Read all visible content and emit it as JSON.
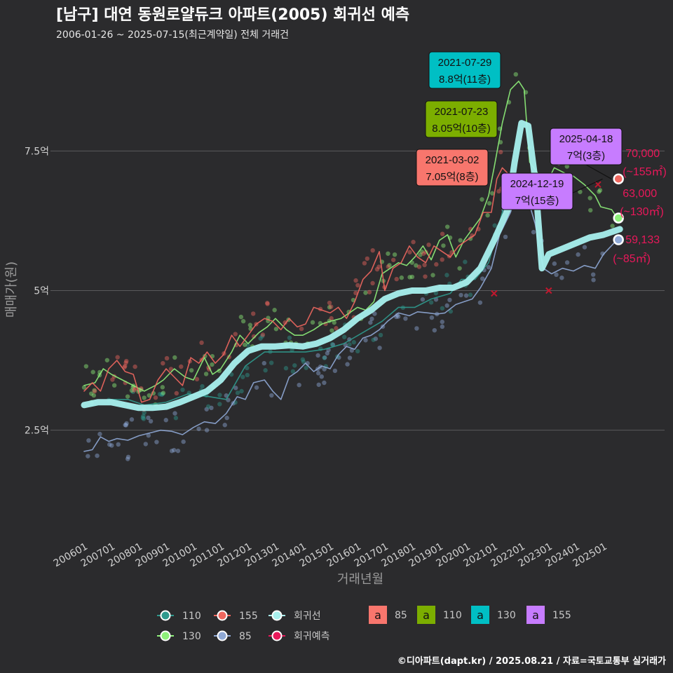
{
  "header": {
    "title": "[남구] 대연 동원로얄듀크 아파트(2005) 회귀선 예측",
    "subtitle": "2006-01-26 ~ 2025-07-15(최근계약일) 전체 거래건"
  },
  "footer": {
    "credit": "©디아파트(dapt.kr) / 2025.08.21 / 자료=국토교통부 실거래가"
  },
  "colors": {
    "background": "#2b2b2d",
    "grid": "#5a5a5c",
    "s85": "#8fa9d6",
    "s110": "#2f9a8e",
    "s130": "#8ef07a",
    "s155": "#f0675f",
    "regression": "#a8f0ee",
    "forecast": "#e8185a",
    "box85": "#f8766d",
    "box110": "#7cae00",
    "box130": "#00bfc4",
    "box155": "#c77cff"
  },
  "chart_data": {
    "type": "line",
    "title": "[남구] 대연 동원로얄듀크 아파트(2005) 회귀선 예측",
    "xlabel": "거래년월",
    "ylabel": "매매가(원)",
    "ylim": [
      0.6,
      9.3
    ],
    "y_unit": "억",
    "y_ticks": [
      {
        "value": 2.5,
        "label": "2.5억"
      },
      {
        "value": 5,
        "label": "5억"
      },
      {
        "value": 7.5,
        "label": "7.5억"
      }
    ],
    "x_ticks": [
      "200601",
      "200701",
      "200801",
      "200901",
      "201001",
      "201101",
      "201201",
      "201301",
      "201401",
      "201501",
      "201601",
      "201701",
      "201801",
      "201901",
      "202001",
      "202101",
      "202201",
      "202301",
      "202401",
      "202501"
    ],
    "xlim": [
      2006.0,
      2025.75
    ],
    "series": [
      {
        "name": "85",
        "color": "#8fa9d6",
        "points": [
          [
            2006.0,
            2.12
          ],
          [
            2006.3,
            2.15
          ],
          [
            2006.6,
            2.38
          ],
          [
            2006.9,
            2.3
          ],
          [
            2007.2,
            2.35
          ],
          [
            2007.6,
            2.32
          ],
          [
            2008.0,
            2.4
          ],
          [
            2008.4,
            2.45
          ],
          [
            2008.8,
            2.5
          ],
          [
            2009.2,
            2.48
          ],
          [
            2009.6,
            2.42
          ],
          [
            2010.0,
            2.55
          ],
          [
            2010.4,
            2.65
          ],
          [
            2010.8,
            2.62
          ],
          [
            2011.2,
            2.8
          ],
          [
            2011.6,
            3.1
          ],
          [
            2011.9,
            3.05
          ],
          [
            2012.2,
            3.35
          ],
          [
            2012.6,
            3.4
          ],
          [
            2012.9,
            3.2
          ],
          [
            2013.2,
            3.05
          ],
          [
            2013.5,
            3.45
          ],
          [
            2013.8,
            3.55
          ],
          [
            2014.1,
            3.7
          ],
          [
            2014.4,
            3.55
          ],
          [
            2014.7,
            3.65
          ],
          [
            2015.0,
            3.6
          ],
          [
            2015.3,
            3.85
          ],
          [
            2015.6,
            4.0
          ],
          [
            2015.9,
            3.95
          ],
          [
            2016.2,
            4.15
          ],
          [
            2016.5,
            4.2
          ],
          [
            2016.8,
            4.3
          ],
          [
            2017.1,
            4.45
          ],
          [
            2017.5,
            4.6
          ],
          [
            2017.9,
            4.55
          ],
          [
            2018.2,
            4.62
          ],
          [
            2018.6,
            4.6
          ],
          [
            2018.9,
            4.58
          ],
          [
            2019.2,
            4.6
          ],
          [
            2019.6,
            4.75
          ],
          [
            2019.9,
            4.8
          ],
          [
            2020.2,
            4.85
          ],
          [
            2020.5,
            5.05
          ],
          [
            2020.9,
            5.4
          ],
          [
            2021.2,
            6.0
          ],
          [
            2021.6,
            6.4
          ],
          [
            2021.9,
            6.85
          ],
          [
            2022.2,
            6.7
          ],
          [
            2022.5,
            6.2
          ],
          [
            2022.8,
            5.4
          ],
          [
            2023.1,
            5.3
          ],
          [
            2023.5,
            5.4
          ],
          [
            2023.9,
            5.35
          ],
          [
            2024.3,
            5.45
          ],
          [
            2024.7,
            5.4
          ],
          [
            2025.0,
            5.65
          ],
          [
            2025.5,
            5.91
          ]
        ]
      },
      {
        "name": "110",
        "color": "#2f9a8e",
        "points": [
          [
            2006.9,
            3.05
          ],
          [
            2007.6,
            3.05
          ],
          [
            2008.2,
            2.95
          ],
          [
            2009.0,
            3.0
          ],
          [
            2009.8,
            3.15
          ],
          [
            2010.6,
            3.1
          ],
          [
            2011.2,
            3.05
          ],
          [
            2011.9,
            3.65
          ],
          [
            2012.6,
            3.9
          ],
          [
            2013.1,
            3.9
          ],
          [
            2013.6,
            3.9
          ],
          [
            2014.1,
            3.9
          ],
          [
            2014.8,
            3.95
          ],
          [
            2015.5,
            4.05
          ],
          [
            2016.2,
            4.25
          ],
          [
            2016.9,
            4.45
          ],
          [
            2017.5,
            4.7
          ],
          [
            2018.1,
            4.7
          ],
          [
            2018.7,
            4.85
          ],
          [
            2019.4,
            4.95
          ],
          [
            2019.8,
            5.2
          ],
          [
            2020.3,
            5.2
          ],
          [
            2020.8,
            5.5
          ],
          [
            2021.3,
            6.4
          ],
          [
            2021.6,
            7.0
          ]
        ]
      },
      {
        "name": "130",
        "color": "#8ef07a",
        "points": [
          [
            2006.0,
            3.3
          ],
          [
            2006.4,
            3.35
          ],
          [
            2006.7,
            3.6
          ],
          [
            2007.0,
            3.5
          ],
          [
            2007.4,
            3.4
          ],
          [
            2007.8,
            3.3
          ],
          [
            2008.2,
            3.2
          ],
          [
            2008.6,
            3.3
          ],
          [
            2008.9,
            3.4
          ],
          [
            2009.3,
            3.6
          ],
          [
            2009.7,
            3.45
          ],
          [
            2010.0,
            3.4
          ],
          [
            2010.4,
            3.8
          ],
          [
            2010.7,
            3.5
          ],
          [
            2011.0,
            3.6
          ],
          [
            2011.4,
            3.9
          ],
          [
            2011.7,
            4.2
          ],
          [
            2012.0,
            4.05
          ],
          [
            2012.4,
            4.25
          ],
          [
            2012.7,
            4.35
          ],
          [
            2013.0,
            4.5
          ],
          [
            2013.4,
            4.3
          ],
          [
            2013.7,
            4.2
          ],
          [
            2014.0,
            4.2
          ],
          [
            2014.4,
            4.3
          ],
          [
            2014.7,
            4.4
          ],
          [
            2015.0,
            4.45
          ],
          [
            2015.4,
            4.5
          ],
          [
            2015.7,
            4.6
          ],
          [
            2016.0,
            4.7
          ],
          [
            2016.3,
            4.65
          ],
          [
            2016.6,
            4.8
          ],
          [
            2016.9,
            5.3
          ],
          [
            2017.2,
            5.4
          ],
          [
            2017.5,
            5.5
          ],
          [
            2017.8,
            5.45
          ],
          [
            2018.1,
            5.6
          ],
          [
            2018.4,
            5.8
          ],
          [
            2018.7,
            5.55
          ],
          [
            2019.0,
            5.9
          ],
          [
            2019.3,
            6.0
          ],
          [
            2019.6,
            5.6
          ],
          [
            2019.9,
            5.9
          ],
          [
            2020.2,
            6.1
          ],
          [
            2020.5,
            6.3
          ],
          [
            2020.8,
            6.7
          ],
          [
            2021.0,
            7.2
          ],
          [
            2021.3,
            8.0
          ],
          [
            2021.6,
            8.6
          ],
          [
            2021.9,
            8.75
          ],
          [
            2022.1,
            8.6
          ],
          [
            2022.3,
            7.3
          ],
          [
            2022.6,
            7.1
          ],
          [
            2022.9,
            6.9
          ],
          [
            2023.2,
            7.2
          ],
          [
            2023.6,
            7.1
          ],
          [
            2023.9,
            7.05
          ],
          [
            2024.3,
            6.9
          ],
          [
            2024.7,
            6.7
          ],
          [
            2024.9,
            6.5
          ],
          [
            2025.3,
            6.45
          ],
          [
            2025.5,
            6.3
          ]
        ]
      },
      {
        "name": "155",
        "color": "#f0675f",
        "points": [
          [
            2006.0,
            3.2
          ],
          [
            2006.3,
            3.35
          ],
          [
            2006.6,
            3.2
          ],
          [
            2006.9,
            3.6
          ],
          [
            2007.2,
            3.75
          ],
          [
            2007.5,
            3.55
          ],
          [
            2007.8,
            3.5
          ],
          [
            2008.1,
            3.0
          ],
          [
            2008.4,
            3.05
          ],
          [
            2008.7,
            3.4
          ],
          [
            2009.0,
            3.6
          ],
          [
            2009.3,
            3.45
          ],
          [
            2009.6,
            3.3
          ],
          [
            2009.9,
            3.8
          ],
          [
            2010.2,
            3.7
          ],
          [
            2010.5,
            3.9
          ],
          [
            2010.8,
            3.7
          ],
          [
            2011.1,
            3.85
          ],
          [
            2011.4,
            4.2
          ],
          [
            2011.7,
            4.0
          ],
          [
            2012.0,
            4.2
          ],
          [
            2012.3,
            4.4
          ],
          [
            2012.6,
            4.5
          ],
          [
            2012.9,
            4.45
          ],
          [
            2013.2,
            4.3
          ],
          [
            2013.5,
            4.5
          ],
          [
            2013.8,
            4.35
          ],
          [
            2014.1,
            4.4
          ],
          [
            2014.4,
            4.7
          ],
          [
            2014.7,
            4.65
          ],
          [
            2015.0,
            4.6
          ],
          [
            2015.3,
            4.7
          ],
          [
            2015.6,
            4.5
          ],
          [
            2015.9,
            4.8
          ],
          [
            2016.2,
            5.2
          ],
          [
            2016.5,
            5.35
          ],
          [
            2016.8,
            5.7
          ],
          [
            2017.0,
            5.0
          ],
          [
            2017.3,
            5.4
          ],
          [
            2017.6,
            5.5
          ],
          [
            2017.9,
            5.8
          ],
          [
            2018.2,
            5.6
          ],
          [
            2018.5,
            5.5
          ],
          [
            2018.8,
            5.8
          ],
          [
            2019.1,
            5.7
          ],
          [
            2019.4,
            5.6
          ],
          [
            2019.7,
            5.8
          ],
          [
            2020.0,
            5.9
          ],
          [
            2020.3,
            6.0
          ],
          [
            2020.6,
            6.4
          ],
          [
            2020.9,
            6.4
          ],
          [
            2021.1,
            7.0
          ],
          [
            2021.3,
            7.2
          ],
          [
            2021.6,
            7.05
          ]
        ]
      },
      {
        "name": "회귀선",
        "color": "#a8f0ee",
        "points": [
          [
            2006.0,
            2.95
          ],
          [
            2006.5,
            3.0
          ],
          [
            2007.0,
            3.0
          ],
          [
            2007.5,
            2.95
          ],
          [
            2008.0,
            2.9
          ],
          [
            2008.5,
            2.9
          ],
          [
            2009.0,
            2.92
          ],
          [
            2009.5,
            3.0
          ],
          [
            2010.0,
            3.1
          ],
          [
            2010.5,
            3.2
          ],
          [
            2011.0,
            3.4
          ],
          [
            2011.5,
            3.7
          ],
          [
            2012.0,
            3.92
          ],
          [
            2012.5,
            4.0
          ],
          [
            2013.0,
            4.0
          ],
          [
            2013.5,
            4.02
          ],
          [
            2014.0,
            4.0
          ],
          [
            2014.5,
            4.05
          ],
          [
            2015.0,
            4.15
          ],
          [
            2015.5,
            4.3
          ],
          [
            2016.0,
            4.5
          ],
          [
            2016.5,
            4.65
          ],
          [
            2017.0,
            4.85
          ],
          [
            2017.5,
            4.95
          ],
          [
            2018.0,
            5.0
          ],
          [
            2018.5,
            5.0
          ],
          [
            2019.0,
            5.05
          ],
          [
            2019.5,
            5.05
          ],
          [
            2020.0,
            5.15
          ],
          [
            2020.5,
            5.4
          ],
          [
            2021.0,
            5.9
          ],
          [
            2021.5,
            6.45
          ],
          [
            2021.75,
            7.3
          ],
          [
            2022.0,
            8.0
          ],
          [
            2022.25,
            7.95
          ],
          [
            2022.5,
            7.0
          ],
          [
            2022.75,
            5.4
          ],
          [
            2023.0,
            5.65
          ],
          [
            2023.5,
            5.75
          ],
          [
            2024.0,
            5.85
          ],
          [
            2024.5,
            5.95
          ],
          [
            2025.0,
            6.0
          ],
          [
            2025.6,
            6.1
          ]
        ]
      }
    ],
    "forecast_points": [
      {
        "value": 70000,
        "label": "70,000",
        "area": "(~155㎡)",
        "y": 7.0,
        "color": "#f0675f"
      },
      {
        "value": 63000,
        "label": "63,000",
        "area": "(~130㎡)",
        "y": 6.3,
        "color": "#8ef07a"
      },
      {
        "value": 59133,
        "label": "59,133",
        "area": "(~85㎡)",
        "y": 5.91,
        "color": "#8fa9d6"
      }
    ],
    "forecast_x": 2025.55,
    "cross_markers": [
      [
        2021.0,
        4.95
      ],
      [
        2023.0,
        5.0
      ],
      [
        2024.8,
        6.9
      ]
    ],
    "annotations": [
      {
        "date": "2021-07-29",
        "text": "8.8억(11층)",
        "type": "130",
        "x": 2021.57,
        "y": 8.8
      },
      {
        "date": "2021-07-23",
        "text": "8.05억(10층)",
        "type": "110",
        "x": 2021.56,
        "y": 8.05
      },
      {
        "date": "2021-03-02",
        "text": "7.05억(8층)",
        "type": "85",
        "x": 2021.17,
        "y": 7.05
      },
      {
        "date": "2025-04-18",
        "text": "7억(3층)",
        "type": "155",
        "x": 2025.29,
        "y": 7.0
      },
      {
        "date": "2024-12-19",
        "text": "7억(15층)",
        "type": "155",
        "x": 2024.97,
        "y": 7.0
      }
    ]
  },
  "legend": {
    "lines": [
      {
        "key": "110",
        "label": "110"
      },
      {
        "key": "155",
        "label": "155"
      },
      {
        "key": "regression",
        "label": "회귀선"
      },
      {
        "key": "130",
        "label": "130"
      },
      {
        "key": "85",
        "label": "85"
      },
      {
        "key": "forecast",
        "label": "회귀예측"
      }
    ],
    "boxes": [
      {
        "key": "box85",
        "glyph": "a",
        "label": "85"
      },
      {
        "key": "box110",
        "glyph": "a",
        "label": "110"
      },
      {
        "key": "box130",
        "glyph": "a",
        "label": "130"
      },
      {
        "key": "box155",
        "glyph": "a",
        "label": "155"
      }
    ]
  }
}
